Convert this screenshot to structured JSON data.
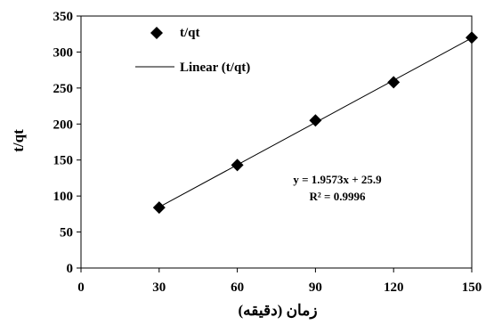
{
  "chart_data": {
    "type": "scatter",
    "xlabel": "زمان (دقیقه)",
    "ylabel": "t/qt",
    "xlim": [
      0,
      150
    ],
    "ylim": [
      0,
      350
    ],
    "xticks": [
      0,
      30,
      60,
      90,
      120,
      150
    ],
    "yticks": [
      0,
      50,
      100,
      150,
      200,
      250,
      300,
      350
    ],
    "grid": false,
    "legend_position": "top-left",
    "series": [
      {
        "name": "t/qt",
        "marker": "diamond",
        "color": "#000000",
        "points": [
          {
            "x": 30,
            "y": 84
          },
          {
            "x": 60,
            "y": 143
          },
          {
            "x": 90,
            "y": 205
          },
          {
            "x": 120,
            "y": 258
          },
          {
            "x": 150,
            "y": 320
          }
        ]
      },
      {
        "name": "Linear (t/qt)",
        "type": "line",
        "color": "#000000",
        "slope": 1.9573,
        "intercept": 25.9,
        "x_range": [
          30,
          150
        ]
      }
    ],
    "annotations": [
      "y = 1.9573x + 25.9",
      "R² = 0.9996"
    ]
  }
}
